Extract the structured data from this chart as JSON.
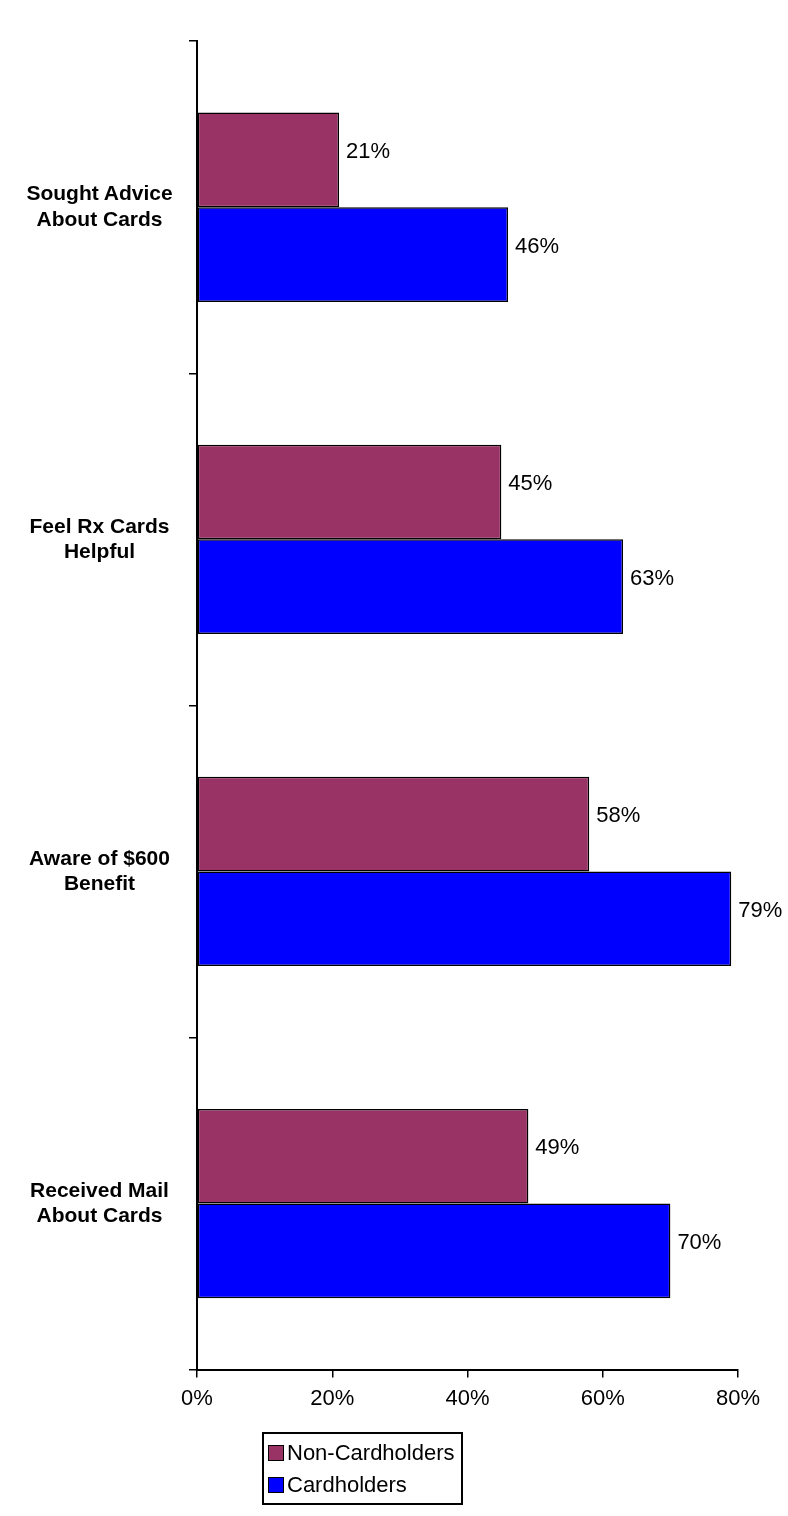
{
  "chart_data": {
    "type": "bar",
    "orientation": "horizontal",
    "categories": [
      "Sought Advice About Cards",
      "Feel Rx Cards Helpful",
      "Aware of $600 Benefit",
      "Received Mail About Cards"
    ],
    "series": [
      {
        "name": "Non-Cardholders",
        "color": "#993366",
        "values": [
          21,
          45,
          58,
          49
        ],
        "value_labels": [
          "21%",
          "45%",
          "58%",
          "49%"
        ]
      },
      {
        "name": "Cardholders",
        "color": "#0000ff",
        "values": [
          46,
          63,
          79,
          70
        ],
        "value_labels": [
          "46%",
          "63%",
          "79%",
          "70%"
        ]
      }
    ],
    "xlim": [
      0,
      80
    ],
    "xticks": [
      {
        "value": 0,
        "label": "0%"
      },
      {
        "value": 20,
        "label": "20%"
      },
      {
        "value": 40,
        "label": "40%"
      },
      {
        "value": 60,
        "label": "60%"
      },
      {
        "value": 80,
        "label": "80%"
      }
    ],
    "grid": false,
    "legend": "bottom"
  }
}
